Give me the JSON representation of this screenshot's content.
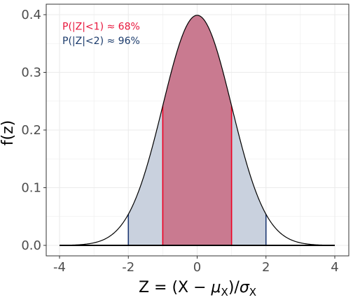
{
  "chart_data": {
    "type": "area",
    "title": "",
    "distribution": "standard normal",
    "xlabel": {
      "prefix": "Z = (X − ",
      "mu": "μ",
      "mu_sub": "X",
      "mid": ")/",
      "sigma": "σ",
      "sigma_sub": "X"
    },
    "ylabel": "f(z)",
    "xlim": [
      -4,
      4
    ],
    "ylim": [
      0,
      0.4
    ],
    "x_ticks": [
      -4,
      -2,
      0,
      2,
      4
    ],
    "x_tick_labels": [
      "-4",
      "-2",
      "0",
      "2",
      "4"
    ],
    "y_ticks": [
      0.0,
      0.1,
      0.2,
      0.3,
      0.4
    ],
    "y_tick_labels": [
      "0.0",
      "0.1",
      "0.2",
      "0.3",
      "0.4"
    ],
    "grid": true,
    "shaded_regions": [
      {
        "from": -2,
        "to": 2,
        "fill": "#c9d1de",
        "edge_color": "#1f3a73"
      },
      {
        "from": -1,
        "to": 1,
        "fill": "#c97a90",
        "edge_color": "#ee0022"
      }
    ],
    "annotations": [
      {
        "text": "P(|Z|<1) ≈ 68%",
        "color": "#e8163c",
        "x": -4,
        "y": 0.38
      },
      {
        "text": "P(|Z|<2) ≈ 96%",
        "color": "#1a3a6b",
        "x": -4,
        "y": 0.355
      }
    ],
    "colors": {
      "curve": "#000000",
      "inner_fill": "#c97a90",
      "outer_fill": "#c9d1de",
      "inner_edge": "#ee0022",
      "outer_edge": "#1f3a73",
      "panel_border": "#333333",
      "grid": "#ebebeb"
    }
  }
}
